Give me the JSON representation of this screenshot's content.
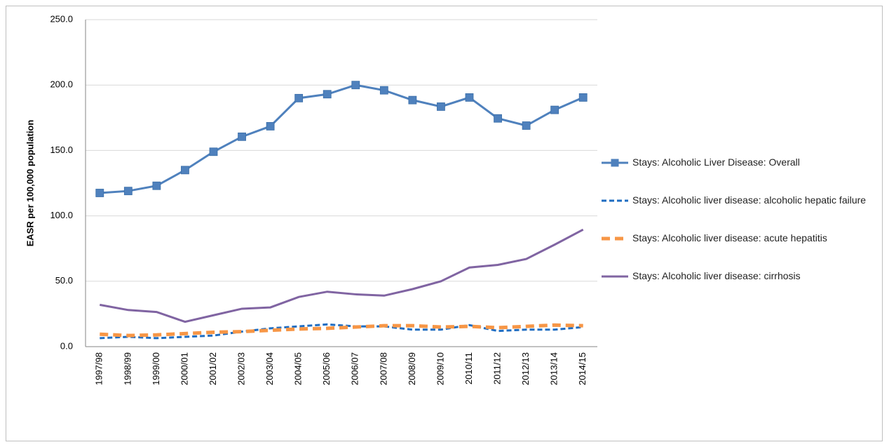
{
  "chart_data": {
    "type": "line",
    "y_label": "EASR per 100,000 population",
    "categories": [
      "1997/98",
      "1998/99",
      "1999/00",
      "2000/01",
      "2001/02",
      "2002/03",
      "2003/04",
      "2004/05",
      "2005/06",
      "2006/07",
      "2007/08",
      "2008/09",
      "2009/10",
      "2010/11",
      "2011/12",
      "2012/13",
      "2013/14",
      "2014/15"
    ],
    "ylim": [
      0,
      250
    ],
    "yticks": [
      {
        "value": 0,
        "label": "0.0"
      },
      {
        "value": 50,
        "label": "50.0"
      },
      {
        "value": 100,
        "label": "100.0"
      },
      {
        "value": 150,
        "label": "150.0"
      },
      {
        "value": 200,
        "label": "200.0"
      },
      {
        "value": 250,
        "label": "250.0"
      }
    ],
    "grid": true,
    "legend": "right",
    "series": [
      {
        "name": "Stays: Alcoholic Liver Disease: Overall",
        "color": "#4f81bd",
        "line_style": "solid",
        "marker": "square",
        "values": [
          117.5,
          119,
          123,
          135,
          149,
          160.5,
          168.5,
          190,
          193,
          200,
          196,
          188.5,
          183.5,
          190.5,
          174.5,
          169,
          181,
          190.5
        ]
      },
      {
        "name": "Stays: Alcoholic liver disease: alcoholic hepatic failure",
        "color": "#1f6dc2",
        "line_style": "dashed",
        "marker": "none",
        "values": [
          6.5,
          7.5,
          6.5,
          7.5,
          8.5,
          11.5,
          14,
          15.5,
          17,
          15.5,
          15.5,
          13,
          13,
          16.5,
          12,
          13,
          13,
          15
        ]
      },
      {
        "name": "Stays: Alcoholic liver disease: acute hepatitis",
        "color": "#f79646",
        "line_style": "long-dashed",
        "marker": "none",
        "values": [
          9.5,
          8.5,
          9,
          10,
          11,
          11.5,
          12.5,
          13.5,
          14,
          15,
          16,
          16,
          15,
          15.5,
          14.5,
          15.5,
          16.5,
          16
        ]
      },
      {
        "name": "Stays: Alcoholic liver disease: cirrhosis",
        "color": "#8064a2",
        "line_style": "solid",
        "marker": "none",
        "values": [
          32,
          28,
          26.5,
          19,
          24,
          29,
          30,
          38,
          42,
          40,
          39,
          44,
          50,
          60.5,
          62.5,
          67,
          78,
          89.5
        ]
      }
    ]
  }
}
